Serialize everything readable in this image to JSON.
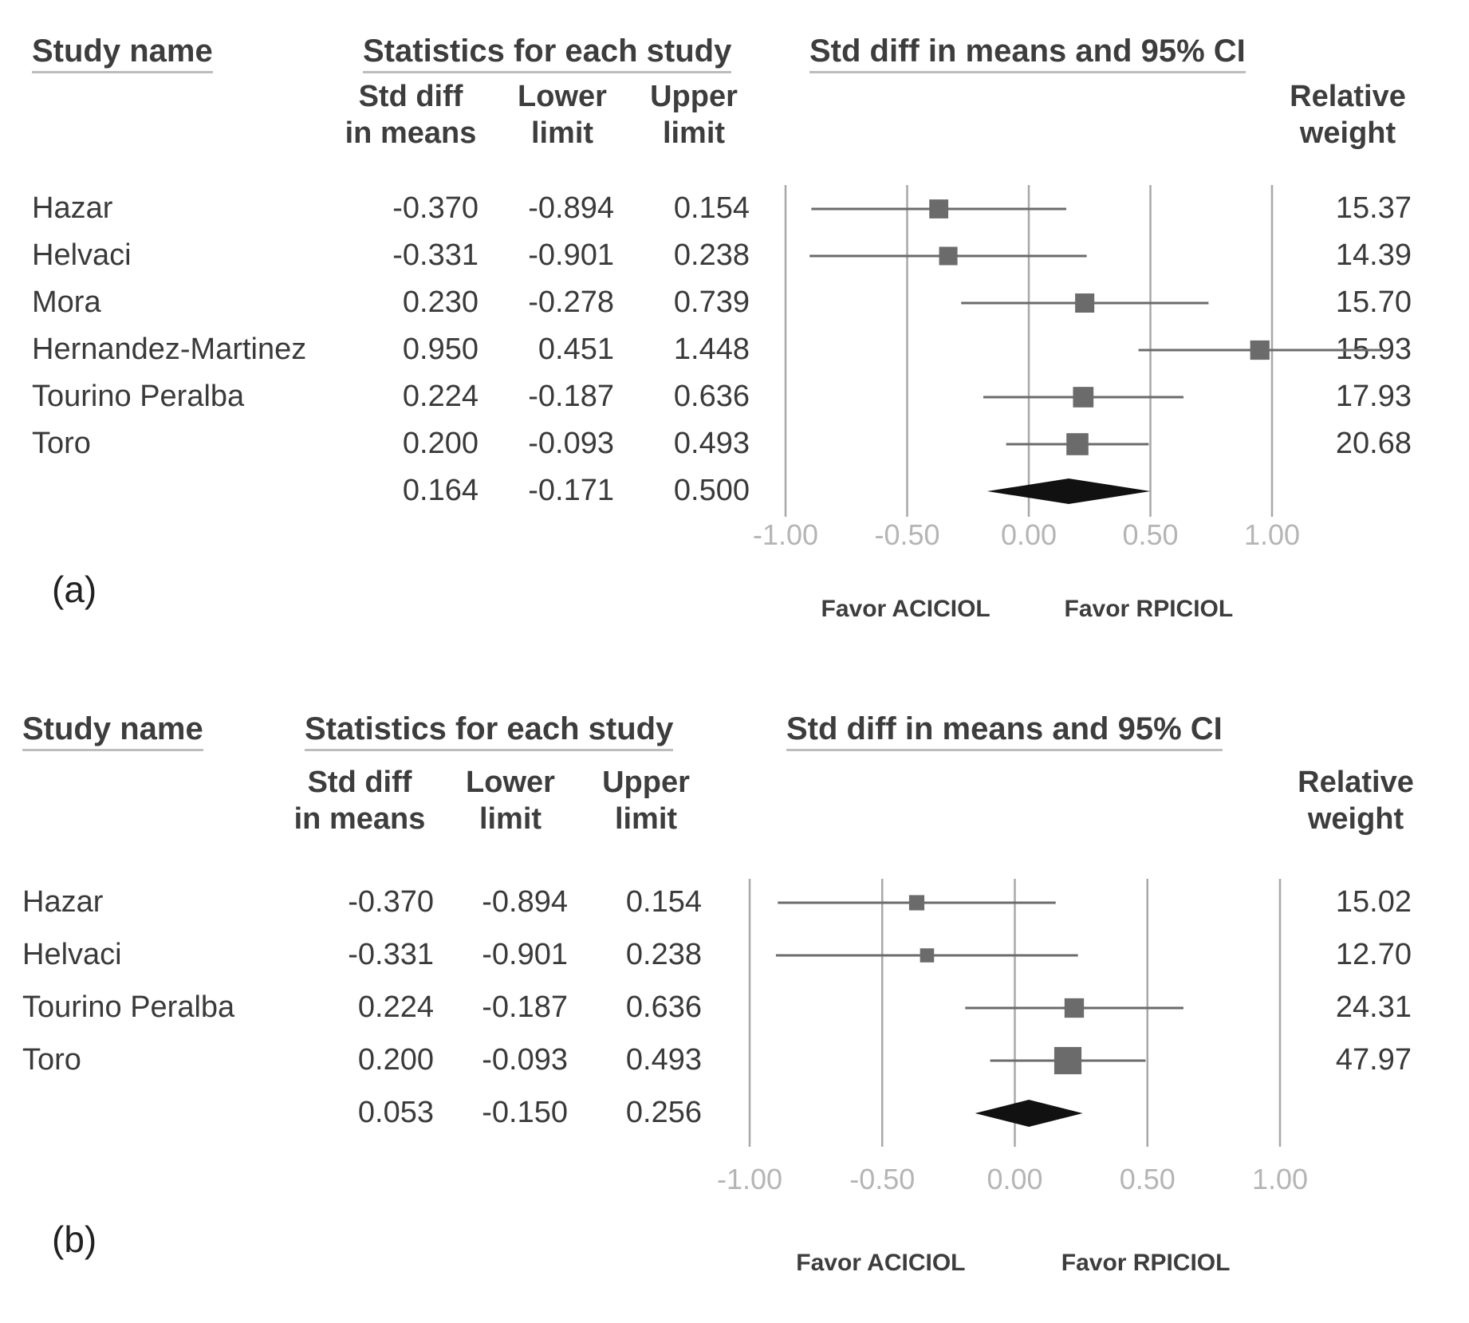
{
  "chart_data": [
    {
      "type": "forest",
      "panel_label": "(a)",
      "headers": {
        "study_name": "Study name",
        "statistics": "Statistics for each study",
        "plot": "Std diff in means and 95% CI",
        "std_diff": [
          "Std diff",
          "in means"
        ],
        "lower": [
          "Lower",
          "limit"
        ],
        "upper": [
          "Upper",
          "limit"
        ],
        "weight": [
          "Relative",
          "weight"
        ]
      },
      "studies": [
        {
          "name": "Hazar",
          "std_diff": "-0.370",
          "lower": "-0.894",
          "upper": "0.154",
          "weight": "15.37"
        },
        {
          "name": "Helvaci",
          "std_diff": "-0.331",
          "lower": "-0.901",
          "upper": "0.238",
          "weight": "14.39"
        },
        {
          "name": "Mora",
          "std_diff": "0.230",
          "lower": "-0.278",
          "upper": "0.739",
          "weight": "15.70"
        },
        {
          "name": "Hernandez-Martinez",
          "std_diff": "0.950",
          "lower": "0.451",
          "upper": "1.448",
          "weight": "15.93"
        },
        {
          "name": "Tourino Peralba",
          "std_diff": "0.224",
          "lower": "-0.187",
          "upper": "0.636",
          "weight": "17.93"
        },
        {
          "name": "Toro",
          "std_diff": "0.200",
          "lower": "-0.093",
          "upper": "0.493",
          "weight": "20.68"
        }
      ],
      "summary": {
        "std_diff": "0.164",
        "lower": "-0.171",
        "upper": "0.500"
      },
      "x_ticks": [
        "-1.00",
        "-0.50",
        "0.00",
        "0.50",
        "1.00"
      ],
      "xlim": [
        -1,
        1
      ],
      "favor_left": "Favor ACICIOL",
      "favor_right": "Favor RPICIOL"
    },
    {
      "type": "forest",
      "panel_label": "(b)",
      "headers": {
        "study_name": "Study name",
        "statistics": "Statistics for each study",
        "plot": "Std diff in means and 95% CI",
        "std_diff": [
          "Std diff",
          "in means"
        ],
        "lower": [
          "Lower",
          "limit"
        ],
        "upper": [
          "Upper",
          "limit"
        ],
        "weight": [
          "Relative",
          "weight"
        ]
      },
      "studies": [
        {
          "name": "Hazar",
          "std_diff": "-0.370",
          "lower": "-0.894",
          "upper": "0.154",
          "weight": "15.02"
        },
        {
          "name": "Helvaci",
          "std_diff": "-0.331",
          "lower": "-0.901",
          "upper": "0.238",
          "weight": "12.70"
        },
        {
          "name": "Tourino Peralba",
          "std_diff": "0.224",
          "lower": "-0.187",
          "upper": "0.636",
          "weight": "24.31"
        },
        {
          "name": "Toro",
          "std_diff": "0.200",
          "lower": "-0.093",
          "upper": "0.493",
          "weight": "47.97"
        }
      ],
      "summary": {
        "std_diff": "0.053",
        "lower": "-0.150",
        "upper": "0.256"
      },
      "x_ticks": [
        "-1.00",
        "-0.50",
        "0.00",
        "0.50",
        "1.00"
      ],
      "xlim": [
        -1,
        1
      ],
      "favor_left": "Favor ACICIOL",
      "favor_right": "Favor RPICIOL"
    }
  ],
  "colors": {
    "marker": "#6b6b6b",
    "line": "#6b6b6b",
    "diamond": "#111111",
    "grid": "#a8a8a8"
  }
}
